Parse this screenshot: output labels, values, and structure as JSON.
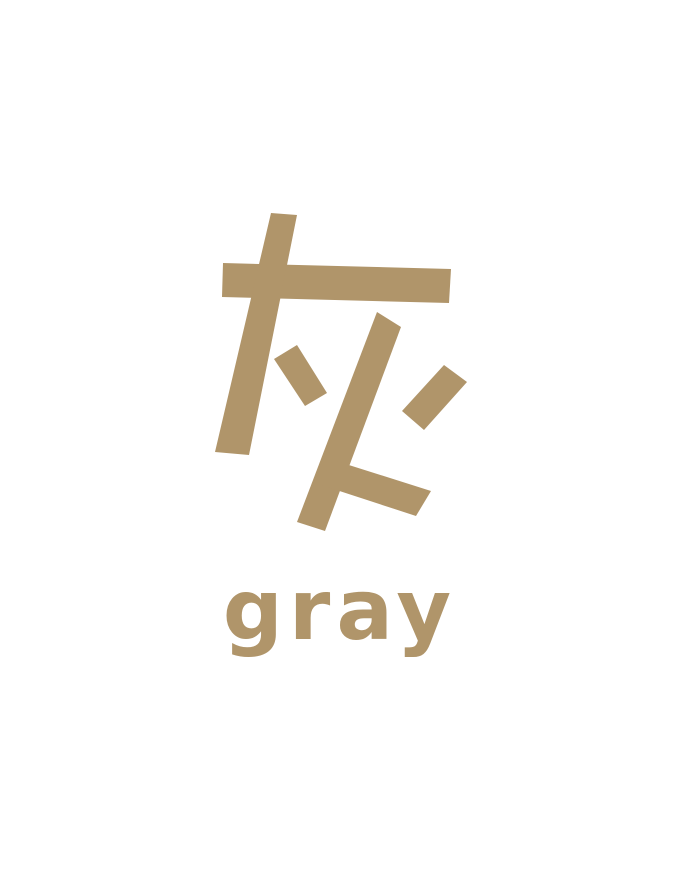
{
  "character": {
    "text": "灰",
    "icon": "hanzi-gray-character-icon"
  },
  "word": {
    "label": "gray"
  },
  "colors": {
    "ink": "#b0956a",
    "background": "#ffffff"
  }
}
